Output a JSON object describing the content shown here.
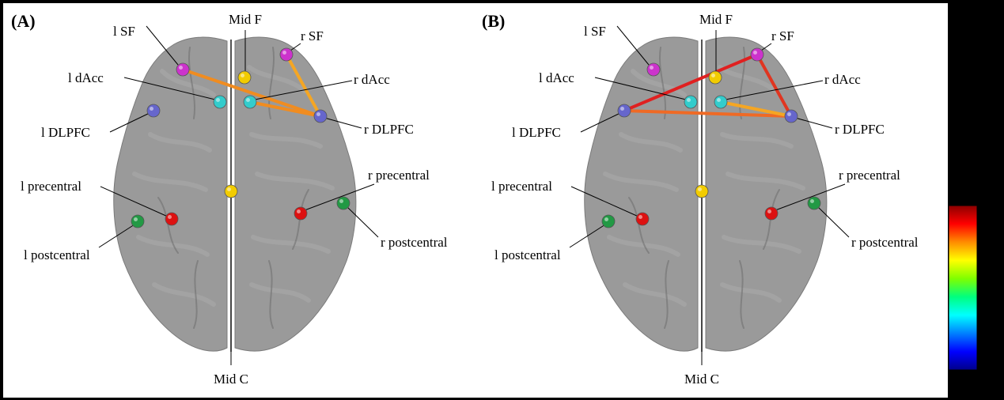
{
  "colors": {
    "figure_background": "#ffffff",
    "outer_background": "#000000",
    "brain": "#8f8f8f"
  },
  "roi_colors": {
    "lSF": "#cc33cc",
    "rSF": "#cc33cc",
    "midF": "#f2cc00",
    "midC": "#f2cc00",
    "ldAcc": "#33cccc",
    "rdAcc": "#33cccc",
    "lDLPFC": "#6666cc",
    "rDLPFC": "#6666cc",
    "lPrecentral": "#dd1111",
    "rPrecentral": "#dd1111",
    "lPostcentral": "#229944",
    "rPostcentral": "#229944"
  },
  "rois": [
    {
      "id": "lSF",
      "label": "l SF"
    },
    {
      "id": "midF",
      "label": "Mid F"
    },
    {
      "id": "rSF",
      "label": "r SF"
    },
    {
      "id": "ldAcc",
      "label": "l dAcc"
    },
    {
      "id": "rdAcc",
      "label": "r dAcc"
    },
    {
      "id": "lDLPFC",
      "label": "l DLPFC"
    },
    {
      "id": "rDLPFC",
      "label": "r DLPFC"
    },
    {
      "id": "lPrecentral",
      "label": "l precentral"
    },
    {
      "id": "rPrecentral",
      "label": "r precentral"
    },
    {
      "id": "lPostcentral",
      "label": "l postcentral"
    },
    {
      "id": "rPostcentral",
      "label": "r postcentral"
    },
    {
      "id": "midC",
      "label": "Mid C"
    }
  ],
  "panels": [
    {
      "letter": "(A)",
      "connections": [
        {
          "from": "lSF",
          "to": "rDLPFC",
          "color": "#f08c20"
        },
        {
          "from": "rSF",
          "to": "rDLPFC",
          "color": "#f5a623"
        },
        {
          "from": "rdAcc",
          "to": "rDLPFC",
          "color": "#f08c20"
        }
      ]
    },
    {
      "letter": "(B)",
      "connections": [
        {
          "from": "lDLPFC",
          "to": "rSF",
          "color": "#e02020"
        },
        {
          "from": "rSF",
          "to": "rDLPFC",
          "color": "#e03520"
        },
        {
          "from": "lDLPFC",
          "to": "rDLPFC",
          "color": "#ef6a25"
        },
        {
          "from": "rdAcc",
          "to": "rDLPFC",
          "color": "#f5a623"
        }
      ]
    }
  ],
  "colorbar": {
    "stops": [
      "#8b0000",
      "#ff0000",
      "#ff8c00",
      "#ffff00",
      "#7fff00",
      "#00ff7f",
      "#00ffff",
      "#0080ff",
      "#0000ff",
      "#00008b"
    ]
  }
}
